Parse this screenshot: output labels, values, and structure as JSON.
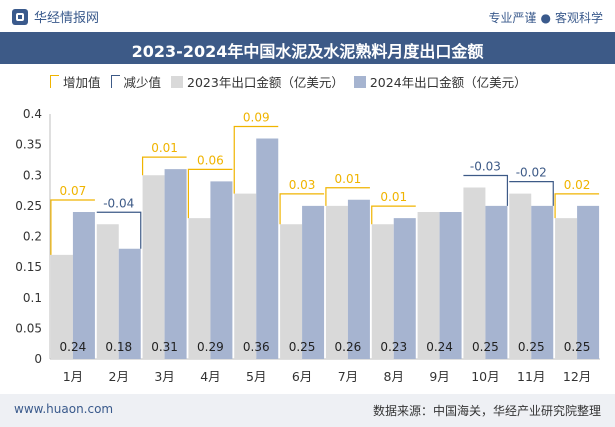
{
  "header": {
    "brand_name": "华经情报网",
    "slogan_left": "专业严谨",
    "slogan_dot": "●",
    "slogan_right": "客观科学"
  },
  "title": "2023-2024年中国水泥及水泥熟料月度出口金额",
  "legend": {
    "increase": "增加值",
    "decrease": "减少值",
    "series_2023": "2023年出口金额（亿美元）",
    "series_2024": "2024年出口金额（亿美元）"
  },
  "footer": {
    "url": "www.huaon.com",
    "source": "数据来源：中国海关，华经产业研究院整理"
  },
  "colors": {
    "bar_2023": "#d9d9d9",
    "bar_2024": "#a6b4d0",
    "increase": "#f0b400",
    "decrease": "#3d5a87",
    "title_bg": "#3d5a87"
  },
  "chart_data": {
    "type": "bar",
    "title": "2023-2024年中国水泥及水泥熟料月度出口金额",
    "categories": [
      "1月",
      "2月",
      "3月",
      "4月",
      "5月",
      "6月",
      "7月",
      "8月",
      "9月",
      "10月",
      "11月",
      "12月"
    ],
    "series": [
      {
        "name": "2023年出口金额（亿美元）",
        "values": [
          0.17,
          0.22,
          0.3,
          0.23,
          0.27,
          0.22,
          0.25,
          0.22,
          0.24,
          0.28,
          0.27,
          0.23
        ]
      },
      {
        "name": "2024年出口金额（亿美元）",
        "values": [
          0.24,
          0.18,
          0.31,
          0.29,
          0.36,
          0.25,
          0.26,
          0.23,
          0.24,
          0.25,
          0.25,
          0.25
        ]
      }
    ],
    "data_labels_2024": [
      "0.24",
      "0.18",
      "0.31",
      "0.29",
      "0.36",
      "0.25",
      "0.26",
      "0.23",
      "0.24",
      "0.25",
      "0.25",
      "0.25"
    ],
    "change_labels": [
      "0.07",
      "-0.04",
      "0.01",
      "0.06",
      "0.09",
      "0.03",
      "0.01",
      "0.01",
      "",
      "-0.03",
      "-0.02",
      "0.02"
    ],
    "y_ticks": [
      "0",
      "0.05",
      "0.1",
      "0.15",
      "0.2",
      "0.25",
      "0.3",
      "0.35",
      "0.4"
    ],
    "ylim": [
      0,
      0.4
    ],
    "grid": false,
    "legend_position": "top-left"
  }
}
